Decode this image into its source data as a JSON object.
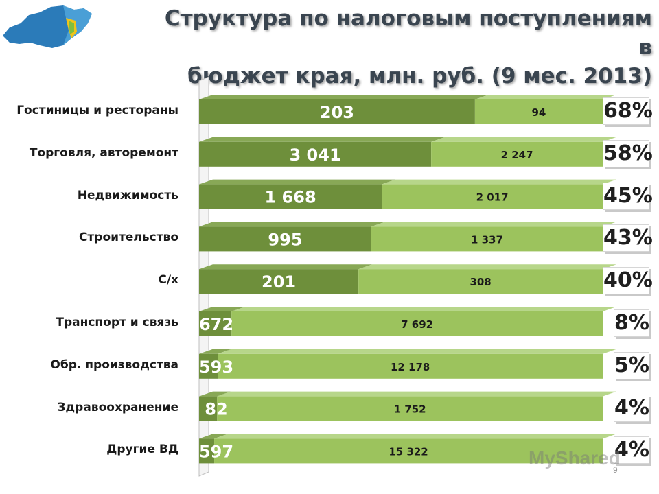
{
  "title_line1": "Структура по налоговым поступлениям в",
  "title_line2": "бюджет края, млн. руб. (9 мес. 2013)",
  "watermark": "MyShared",
  "page_number": "9",
  "colors": {
    "dark_segment": "#6e8f3b",
    "light_segment": "#9cc35d",
    "title": "#3a4550"
  },
  "chart_data": {
    "type": "bar",
    "orientation": "horizontal",
    "stacked": "100%",
    "categories": [
      "Гостиницы и рестораны",
      "Торговля, авторемонт",
      "Недвижимость",
      "Строительство",
      "С/х",
      "Транспорт и связь",
      "Обр. производства",
      "Здравоохранение",
      "Другие ВД"
    ],
    "series": [
      {
        "values": [
          203,
          3041,
          1668,
          995,
          201,
          672,
          593,
          82,
          597
        ],
        "labels": [
          "203",
          "3 041",
          "1 668",
          "995",
          "201",
          "672",
          "593",
          "82",
          "597"
        ]
      },
      {
        "values": [
          94,
          2247,
          2017,
          1337,
          308,
          7692,
          12178,
          1752,
          15322
        ],
        "labels": [
          "94",
          "2 247",
          "2 017",
          "1 337",
          "308",
          "7 692",
          "12 178",
          "1 752",
          "15 322"
        ]
      }
    ],
    "percent_labels": [
      "68%",
      "58%",
      "45%",
      "43%",
      "40%",
      "8%",
      "5%",
      "4%",
      "4%"
    ]
  }
}
